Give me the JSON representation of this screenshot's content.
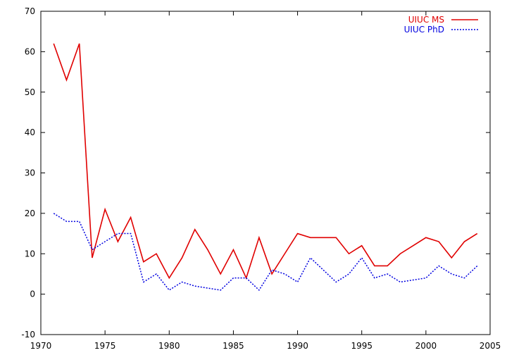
{
  "chart_data": {
    "type": "line",
    "title": "",
    "xlabel": "",
    "ylabel": "",
    "xlim": [
      1970,
      2005
    ],
    "ylim": [
      -10,
      70
    ],
    "xticks": [
      1970,
      1975,
      1980,
      1985,
      1990,
      1995,
      2000,
      2005
    ],
    "yticks": [
      -10,
      0,
      10,
      20,
      30,
      40,
      50,
      60,
      70
    ],
    "grid": false,
    "legend_position": "top-right",
    "x": [
      1971,
      1972,
      1973,
      1974,
      1975,
      1976,
      1977,
      1978,
      1979,
      1980,
      1981,
      1982,
      1983,
      1984,
      1985,
      1986,
      1987,
      1988,
      1989,
      1990,
      1991,
      1992,
      1993,
      1994,
      1995,
      1996,
      1997,
      1998,
      1999,
      2000,
      2001,
      2002,
      2003,
      2004
    ],
    "series": [
      {
        "name": "UIUC MS",
        "color": "#e00000",
        "style": "solid",
        "values": [
          62,
          53,
          62,
          9,
          21,
          13,
          19,
          8,
          10,
          4,
          9,
          16,
          11,
          5,
          11,
          4,
          14,
          5,
          10,
          15,
          14,
          14,
          14,
          10,
          12,
          7,
          7,
          10,
          12,
          14,
          13,
          9,
          13,
          15
        ]
      },
      {
        "name": "UIUC PhD",
        "color": "#0000e0",
        "style": "dotted",
        "values": [
          20,
          18,
          18,
          11,
          13,
          15,
          15,
          3,
          5,
          1,
          3,
          2,
          1.5,
          1,
          4,
          4,
          1,
          6,
          5,
          3,
          9,
          6,
          3,
          5,
          9,
          4,
          5,
          3,
          3.5,
          4,
          7,
          5,
          4,
          7
        ]
      }
    ]
  }
}
